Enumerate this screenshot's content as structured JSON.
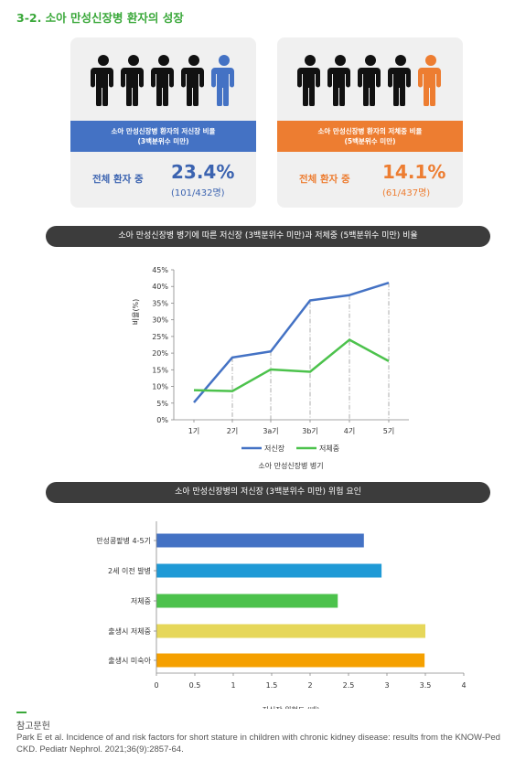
{
  "section_title": "3-2. 소아 만성신장병 환자의 성장",
  "cards": [
    {
      "band_line1": "소아 만성신장병 환자의 저신장 비율",
      "band_line2": "(3백분위수 미만)",
      "stat_label": "전체 환자 중",
      "stat_value": "23.4%",
      "stat_sub": "(101/432명)",
      "accent_color": "#4472c4",
      "icon": "person-icon",
      "highlight_color": "#4472c4"
    },
    {
      "band_line1": "소아 만성신장병 환자의 저체중 비율",
      "band_line2": "(5백분위수 미만)",
      "stat_label": "전체 환자 중",
      "stat_value": "14.1%",
      "stat_sub": "(61/437명)",
      "accent_color": "#ed7d31",
      "icon": "person-icon",
      "highlight_color": "#ed7d31"
    }
  ],
  "pill1": "소아 만성신장병 병기에 따른 저신장 (3백분위수 미만)과 저체중 (5백분위수 미만) 비율",
  "pill2": "소아 만성신장병의 저신장 (3백분위수 미만) 위험 요인",
  "chart_data": [
    {
      "type": "line",
      "title": "",
      "xlabel": "소아 만성신장병 병기",
      "ylabel": "비율(%)",
      "categories": [
        "1기",
        "2기",
        "3a기",
        "3b기",
        "4기",
        "5기"
      ],
      "y_ticks": [
        "0%",
        "5%",
        "10%",
        "15%",
        "20%",
        "25%",
        "30%",
        "35%",
        "40%",
        "45%"
      ],
      "ylim": [
        0,
        45
      ],
      "series": [
        {
          "name": "저신장",
          "color": "#4472c4",
          "values": [
            5.2,
            18.7,
            20.5,
            35.8,
            37.4,
            41.1
          ]
        },
        {
          "name": "저체중",
          "color": "#4cc24c",
          "values": [
            8.9,
            8.6,
            15.1,
            14.4,
            24.0,
            17.6
          ]
        }
      ],
      "grid": false,
      "legend": "bottom"
    },
    {
      "type": "bar",
      "orientation": "horizontal",
      "title": "",
      "xlabel": "저신장 위험도 (배)",
      "categories": [
        "만성콩팥병 4-5기",
        "2세 이전 발병",
        "저체중",
        "출생시 저체중",
        "출생시 미숙아"
      ],
      "values": [
        2.7,
        2.93,
        2.36,
        3.5,
        3.49
      ],
      "colors": [
        "#4472c4",
        "#1f9ad6",
        "#4cc24c",
        "#e6d75a",
        "#f5a000"
      ],
      "x_ticks": [
        "0",
        "0.5",
        "1",
        "1.5",
        "2",
        "2.5",
        "3",
        "3.5",
        "4"
      ],
      "xlim": [
        0,
        4
      ],
      "grid": false
    }
  ],
  "references": {
    "title": "참고문헌",
    "text": "Park E et al. Incidence of and risk factors for short stature in children with chronic kidney disease: results from the KNOW-Ped CKD. Pediatr Nephrol. 2021;36(9):2857-64."
  }
}
